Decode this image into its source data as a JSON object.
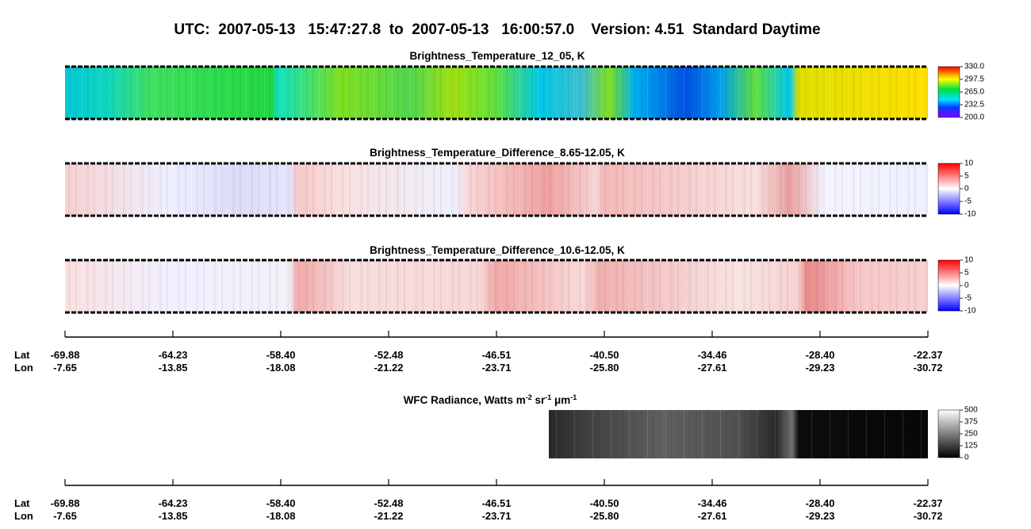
{
  "title": "UTC:  2007-05-13   15:47:27.8  to  2007-05-13   16:00:57.0    Version: 4.51  Standard Daytime",
  "panels": [
    {
      "title": "Brightness_Temperature_12_05, K",
      "colorbar_labels": [
        "330.0",
        "297.5",
        "265.0",
        "232.5",
        "200.0"
      ]
    },
    {
      "title": "Brightness_Temperature_Difference_8.65-12.05, K",
      "colorbar_labels": [
        "10",
        "5",
        "0",
        "-5",
        "-10"
      ]
    },
    {
      "title": "Brightness_Temperature_Difference_10.6-12.05, K",
      "colorbar_labels": [
        "10",
        "5",
        "0",
        "-5",
        "-10"
      ]
    },
    {
      "title_parts": [
        "WFC Radiance, Watts m",
        "-2",
        " sr",
        "-1",
        " μm",
        "-1"
      ],
      "colorbar_labels": [
        "500",
        "375",
        "250",
        "125",
        "0"
      ]
    }
  ],
  "axes": [
    {
      "lat_label": "Lat",
      "lon_label": "Lon",
      "lat": [
        "-69.88",
        "-64.23",
        "-58.40",
        "-52.48",
        "-46.51",
        "-40.50",
        "-34.46",
        "-28.40",
        "-22.37"
      ],
      "lon": [
        "-7.65",
        "-13.85",
        "-18.08",
        "-21.22",
        "-23.71",
        "-25.80",
        "-27.61",
        "-29.23",
        "-30.72"
      ]
    },
    {
      "lat_label": "Lat",
      "lon_label": "Lon",
      "lat": [
        "-69.88",
        "-64.23",
        "-58.40",
        "-52.48",
        "-46.51",
        "-40.50",
        "-34.46",
        "-28.40",
        "-22.37"
      ],
      "lon": [
        "-7.65",
        "-13.85",
        "-18.08",
        "-21.22",
        "-23.71",
        "-25.80",
        "-27.61",
        "-29.23",
        "-30.72"
      ]
    }
  ]
}
